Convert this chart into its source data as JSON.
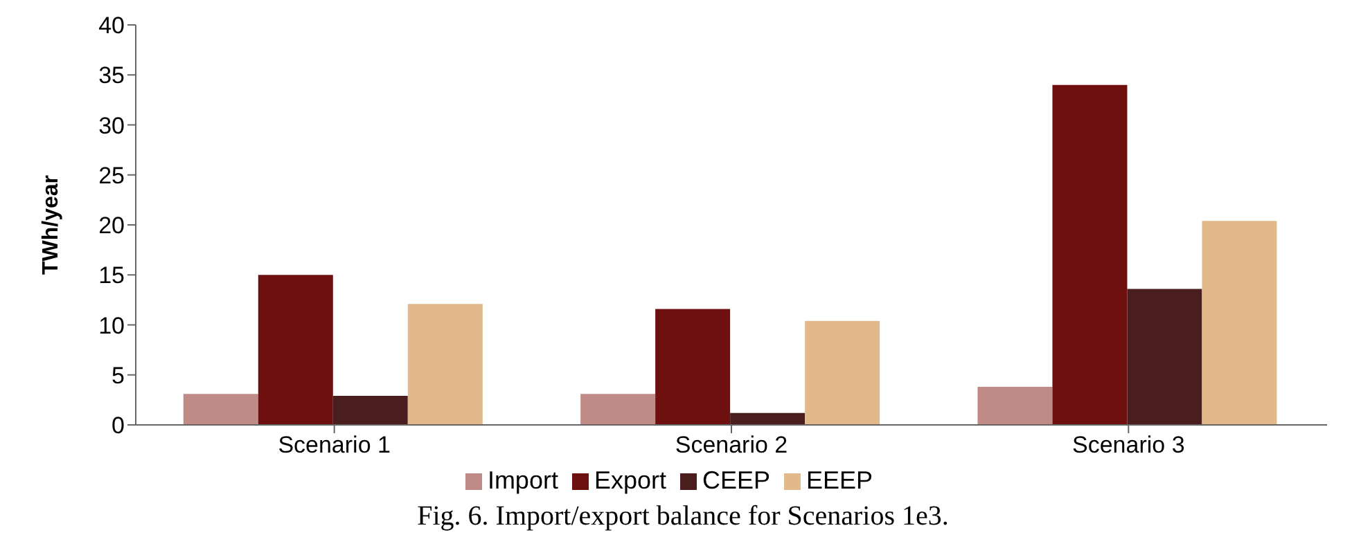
{
  "chart_data": {
    "type": "bar",
    "ylabel": "TWh/year",
    "categories": [
      "Scenario 1",
      "Scenario 2",
      "Scenario 3"
    ],
    "series": [
      {
        "name": "Import",
        "color": "#c08a86",
        "values": [
          3.1,
          3.1,
          3.8
        ]
      },
      {
        "name": "Export",
        "color": "#6e1010",
        "values": [
          15,
          11.6,
          34
        ]
      },
      {
        "name": "CEEP",
        "color": "#4a1e1e",
        "values": [
          2.9,
          1.2,
          13.6
        ]
      },
      {
        "name": "EEEP",
        "color": "#e2b98a",
        "values": [
          12.1,
          10.4,
          20.4
        ]
      }
    ],
    "ylim": [
      0,
      40
    ],
    "yticks": [
      0,
      5,
      10,
      15,
      20,
      25,
      30,
      35,
      40
    ],
    "legend": "bottom",
    "annotations": [
      "Fig. 6. Import/export balance for Scenarios 1e3."
    ]
  }
}
